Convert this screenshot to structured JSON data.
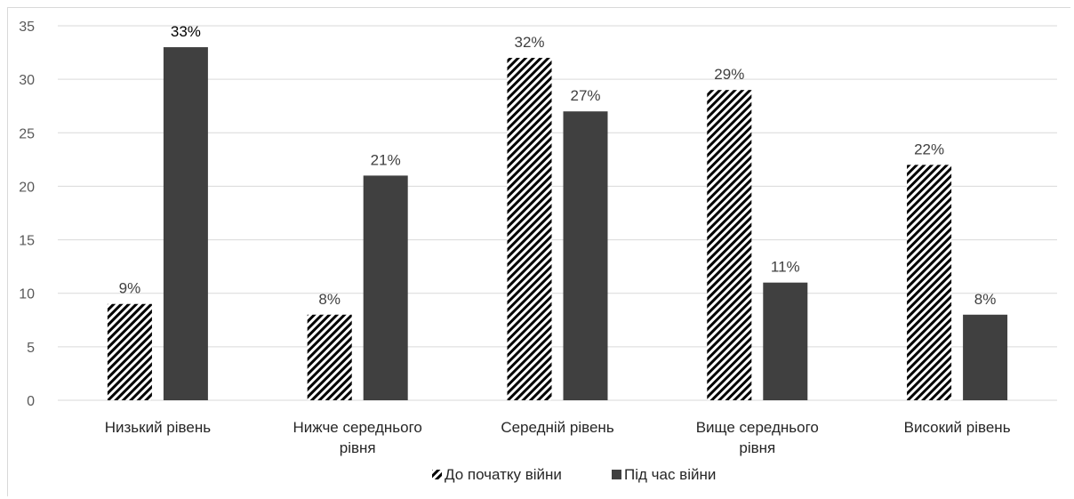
{
  "chart_data": {
    "type": "bar",
    "categories": [
      [
        "Низький рівень"
      ],
      [
        "Нижче середнього",
        "рівня"
      ],
      [
        "Середній рівень"
      ],
      [
        "Вище середнього",
        "рівня"
      ],
      [
        "Високий рівень"
      ]
    ],
    "series": [
      {
        "name": "До початку війни",
        "values": [
          9,
          8,
          32,
          29,
          22
        ],
        "labels": [
          "9%",
          "8%",
          "32%",
          "29%",
          "22%"
        ],
        "pattern": "diagonal-hatch"
      },
      {
        "name": "Під час війни",
        "values": [
          33,
          21,
          27,
          11,
          8
        ],
        "labels": [
          "33%",
          "21%",
          "27%",
          "11%",
          "8%"
        ],
        "color": "#404040"
      }
    ],
    "ylim": [
      0,
      35
    ],
    "yticks": [
      0,
      5,
      10,
      15,
      20,
      25,
      30,
      35
    ],
    "grid": true,
    "legend": "bottom"
  }
}
